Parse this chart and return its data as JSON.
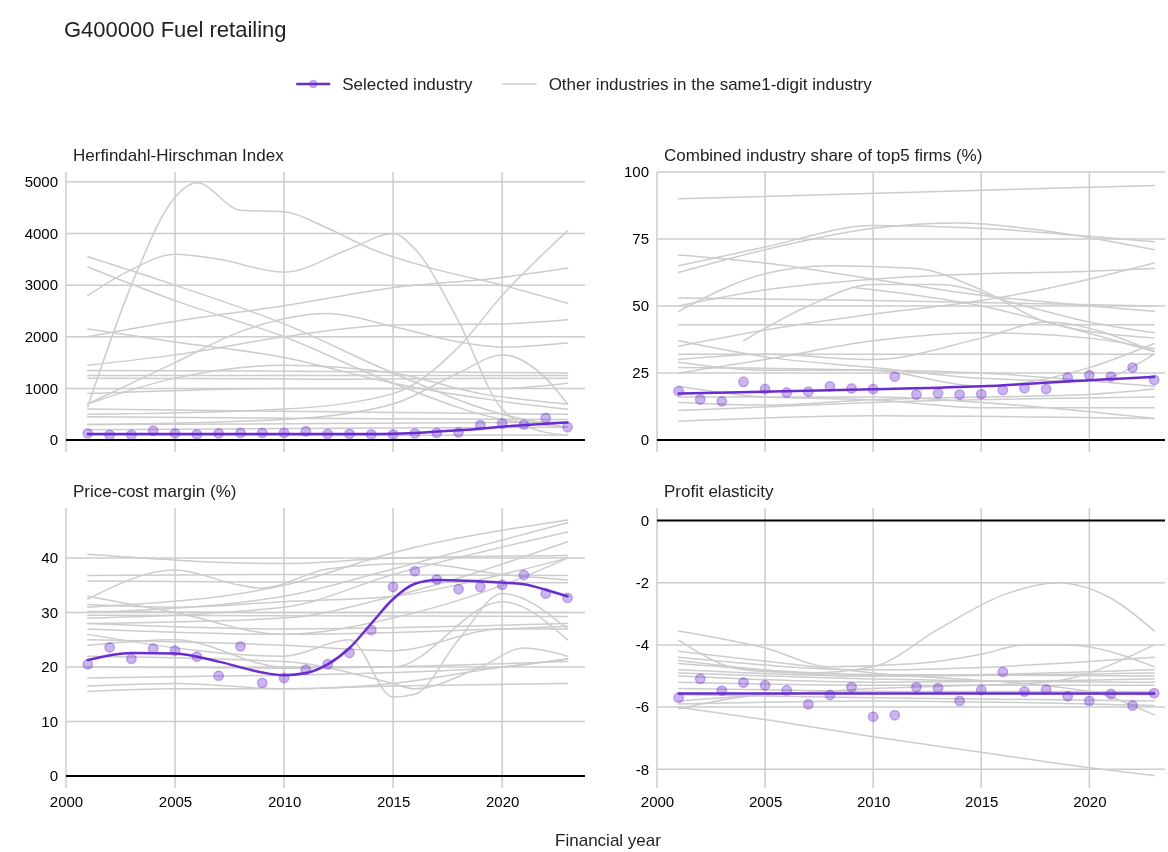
{
  "chart_data": [
    {
      "type": "line",
      "title": "Herfindahl-Hirschman Index",
      "annotations": [
        "G400000 Fuel retailing"
      ],
      "legend": "top",
      "grid": true,
      "tick_labels": "y",
      "xlim": [
        2000,
        2023.8
      ],
      "xticks": [
        2000,
        2005,
        2010,
        2015,
        2020
      ],
      "ylim": [
        -230,
        5190
      ],
      "yticks": [
        0,
        1000,
        2000,
        3000,
        4000,
        5000
      ],
      "ref_lines": [
        {
          "axis": "y",
          "value": 0,
          "color": "#000000"
        }
      ],
      "x": [
        2001,
        2002,
        2003,
        2004,
        2005,
        2006,
        2007,
        2008,
        2009,
        2010,
        2011,
        2012,
        2013,
        2014,
        2015,
        2016,
        2017,
        2018,
        2019,
        2020,
        2021,
        2022,
        2023
      ],
      "series": [
        {
          "type": "line",
          "name": "Other industries in the same1-digit industry",
          "color": "#cccccc",
          "x": [
            2001,
            2003,
            2005,
            2006,
            2008,
            2010,
            2012,
            2014,
            2017,
            2020,
            2023
          ],
          "values": [
            650,
            3000,
            4700,
            4980,
            4450,
            4420,
            4100,
            3700,
            3300,
            3000,
            2650
          ]
        },
        {
          "type": "line",
          "color": "#cccccc",
          "x": [
            2001,
            2003,
            2005,
            2007,
            2010,
            2013,
            2015,
            2016,
            2018,
            2020,
            2022,
            2023
          ],
          "values": [
            2800,
            3300,
            3600,
            3500,
            3250,
            3700,
            4000,
            3700,
            2300,
            600,
            150,
            100
          ]
        },
        {
          "type": "line",
          "color": "#cccccc",
          "x": [
            2001,
            2005,
            2010,
            2015,
            2020,
            2023
          ],
          "values": [
            3550,
            3000,
            2250,
            1300,
            500,
            250
          ]
        },
        {
          "type": "line",
          "color": "#cccccc",
          "x": [
            2001,
            2005,
            2010,
            2015,
            2020,
            2023
          ],
          "values": [
            3350,
            2700,
            2000,
            1100,
            400,
            250
          ]
        },
        {
          "type": "line",
          "color": "#cccccc",
          "x": [
            2001,
            2010,
            2015,
            2018,
            2020,
            2023
          ],
          "values": [
            500,
            600,
            900,
            1800,
            2800,
            4050
          ]
        },
        {
          "type": "line",
          "color": "#cccccc",
          "x": [
            2001,
            2005,
            2010,
            2015,
            2020,
            2023
          ],
          "values": [
            2000,
            2300,
            2600,
            2950,
            3150,
            3330
          ]
        },
        {
          "type": "line",
          "color": "#cccccc",
          "x": [
            2001,
            2005,
            2010,
            2015,
            2020,
            2023
          ],
          "values": [
            2150,
            1900,
            1600,
            1100,
            750,
            600
          ]
        },
        {
          "type": "line",
          "color": "#cccccc",
          "x": [
            2001,
            2005,
            2008,
            2012,
            2015,
            2018,
            2020,
            2023
          ],
          "values": [
            700,
            1500,
            2100,
            2450,
            2200,
            1900,
            1800,
            1880
          ]
        },
        {
          "type": "line",
          "color": "#cccccc",
          "x": [
            2001,
            2005,
            2010,
            2015,
            2020,
            2023
          ],
          "values": [
            1450,
            1650,
            2000,
            2230,
            2250,
            2330
          ]
        },
        {
          "type": "line",
          "color": "#cccccc",
          "x": [
            2001,
            2005,
            2010,
            2015,
            2019,
            2023
          ],
          "values": [
            700,
            1200,
            1450,
            1300,
            900,
            700
          ]
        },
        {
          "type": "line",
          "color": "#cccccc",
          "x": [
            2001,
            2012,
            2023
          ],
          "values": [
            1350,
            1330,
            1300
          ]
        },
        {
          "type": "line",
          "color": "#cccccc",
          "x": [
            2001,
            2012,
            2023
          ],
          "values": [
            1250,
            1250,
            1250
          ]
        },
        {
          "type": "line",
          "color": "#cccccc",
          "x": [
            2001,
            2012,
            2023
          ],
          "values": [
            1200,
            1180,
            1200
          ]
        },
        {
          "type": "line",
          "color": "#cccccc",
          "x": [
            2001,
            2010,
            2020,
            2023
          ],
          "values": [
            900,
            1000,
            1000,
            1100
          ]
        },
        {
          "type": "line",
          "color": "#cccccc",
          "x": [
            2001,
            2010,
            2015,
            2018,
            2020,
            2022,
            2023
          ],
          "values": [
            300,
            400,
            700,
            1300,
            1650,
            1200,
            700
          ]
        },
        {
          "type": "line",
          "color": "#cccccc",
          "x": [
            2001,
            2012,
            2023
          ],
          "values": [
            600,
            550,
            500
          ]
        },
        {
          "type": "line",
          "color": "#cccccc",
          "x": [
            2001,
            2012,
            2023
          ],
          "values": [
            450,
            420,
            400
          ]
        },
        {
          "type": "line",
          "color": "#cccccc",
          "x": [
            2001,
            2012,
            2023
          ],
          "values": [
            300,
            320,
            350
          ]
        },
        {
          "type": "line",
          "color": "#cccccc",
          "x": [
            2001,
            2012,
            2023
          ],
          "values": [
            200,
            230,
            250
          ]
        },
        {
          "type": "line",
          "color": "#cccccc",
          "x": [
            2001,
            2012,
            2023
          ],
          "values": [
            100,
            90,
            100
          ]
        },
        {
          "type": "scatter",
          "color": "#6a2bd0",
          "marker": "circle",
          "values": [
            130,
            100,
            100,
            180,
            130,
            110,
            130,
            140,
            140,
            140,
            170,
            120,
            120,
            110,
            110,
            130,
            140,
            150,
            290,
            320,
            300,
            430,
            250
          ]
        },
        {
          "type": "line",
          "name": "Selected industry",
          "color": "#6a2bd0",
          "x": [
            2001,
            2005,
            2010,
            2014,
            2016,
            2018,
            2020,
            2023
          ],
          "values": [
            120,
            120,
            120,
            120,
            140,
            190,
            260,
            340
          ]
        }
      ]
    },
    {
      "type": "line",
      "title": "Combined industry share of top5 firms (%)",
      "grid": true,
      "tick_labels": "y",
      "xlim": [
        2000,
        2023.5
      ],
      "xticks": [
        2000,
        2005,
        2010,
        2015,
        2020
      ],
      "ylim": [
        -4.5,
        100
      ],
      "yticks": [
        0,
        25,
        50,
        75,
        100
      ],
      "ref_lines": [
        {
          "axis": "y",
          "value": 0,
          "color": "#000000"
        }
      ],
      "x": [
        2001,
        2002,
        2003,
        2004,
        2005,
        2006,
        2007,
        2008,
        2009,
        2010,
        2011,
        2012,
        2013,
        2014,
        2015,
        2016,
        2017,
        2018,
        2019,
        2020,
        2021,
        2022,
        2023
      ],
      "series": [
        {
          "type": "line",
          "color": "#cccccc",
          "x": [
            2001,
            2023
          ],
          "values": [
            90,
            95
          ]
        },
        {
          "type": "line",
          "color": "#cccccc",
          "x": [
            2001,
            2005,
            2010,
            2015,
            2020,
            2023
          ],
          "values": [
            65,
            72,
            80,
            79,
            76,
            74
          ]
        },
        {
          "type": "line",
          "color": "#cccccc",
          "x": [
            2001,
            2005,
            2010,
            2014,
            2018,
            2023
          ],
          "values": [
            62.5,
            71,
            79,
            81,
            78,
            71
          ]
        },
        {
          "type": "line",
          "color": "#cccccc",
          "x": [
            2001,
            2005,
            2010,
            2015,
            2020,
            2023
          ],
          "values": [
            69,
            66,
            60,
            54,
            50,
            48
          ]
        },
        {
          "type": "line",
          "color": "#cccccc",
          "x": [
            2001,
            2005,
            2008,
            2012,
            2015,
            2018,
            2023
          ],
          "values": [
            48,
            62,
            65,
            64,
            56,
            44,
            38
          ]
        },
        {
          "type": "line",
          "color": "#cccccc",
          "x": [
            2001,
            2010,
            2023
          ],
          "values": [
            53,
            52,
            50
          ]
        },
        {
          "type": "line",
          "color": "#cccccc",
          "x": [
            2001,
            2005,
            2010,
            2015,
            2020,
            2023
          ],
          "values": [
            50,
            56,
            60,
            62,
            63,
            64
          ]
        },
        {
          "type": "line",
          "color": "#cccccc",
          "x": [
            2001,
            2010,
            2023
          ],
          "values": [
            43,
            43,
            43
          ]
        },
        {
          "type": "line",
          "color": "#cccccc",
          "x": [
            2004,
            2007,
            2010,
            2013,
            2017,
            2020,
            2023
          ],
          "values": [
            37,
            50,
            58,
            58,
            50,
            44,
            40
          ]
        },
        {
          "type": "line",
          "color": "#cccccc",
          "x": [
            2009,
            2012,
            2015,
            2019,
            2023
          ],
          "values": [
            57,
            54,
            50,
            42,
            33
          ]
        },
        {
          "type": "line",
          "color": "#cccccc",
          "x": [
            2001,
            2005,
            2010,
            2015,
            2020,
            2023
          ],
          "values": [
            35,
            41,
            47,
            52,
            60,
            66
          ]
        },
        {
          "type": "line",
          "color": "#cccccc",
          "x": [
            2001,
            2005,
            2010,
            2015,
            2020,
            2023
          ],
          "values": [
            37,
            31,
            27,
            23,
            22,
            32
          ]
        },
        {
          "type": "line",
          "color": "#cccccc",
          "x": [
            2001,
            2005,
            2010,
            2015,
            2018,
            2023
          ],
          "values": [
            30,
            32,
            30,
            38,
            44,
            33
          ]
        },
        {
          "type": "line",
          "color": "#cccccc",
          "x": [
            2001,
            2005,
            2010,
            2015,
            2020,
            2023
          ],
          "values": [
            25,
            30,
            37,
            40,
            38,
            34
          ]
        },
        {
          "type": "line",
          "color": "#cccccc",
          "x": [
            2001,
            2005,
            2010,
            2015,
            2020,
            2023
          ],
          "values": [
            29,
            26,
            26,
            25,
            22,
            20
          ]
        },
        {
          "type": "line",
          "color": "#cccccc",
          "x": [
            2001,
            2010,
            2023
          ],
          "values": [
            32,
            32,
            32
          ]
        },
        {
          "type": "line",
          "color": "#cccccc",
          "x": [
            2001,
            2005,
            2010,
            2015,
            2020,
            2023
          ],
          "values": [
            20,
            16,
            15,
            12,
            12,
            12
          ]
        },
        {
          "type": "line",
          "color": "#cccccc",
          "x": [
            2001,
            2005,
            2010,
            2015,
            2020,
            2023
          ],
          "values": [
            14,
            13,
            15,
            16,
            17,
            19
          ]
        },
        {
          "type": "line",
          "color": "#cccccc",
          "x": [
            2001,
            2010,
            2023
          ],
          "values": [
            11,
            14,
            16
          ]
        },
        {
          "type": "line",
          "color": "#cccccc",
          "x": [
            2001,
            2010,
            2023
          ],
          "values": [
            7,
            9,
            8
          ]
        },
        {
          "type": "line",
          "color": "#cccccc",
          "x": [
            2001,
            2010,
            2015,
            2023
          ],
          "values": [
            16,
            16,
            14,
            8
          ]
        },
        {
          "type": "line",
          "color": "#cccccc",
          "x": [
            2001,
            2010,
            2015,
            2020,
            2023
          ],
          "values": [
            27,
            26,
            20,
            27,
            36
          ]
        },
        {
          "type": "scatter",
          "color": "#6a2bd0",
          "marker": "circle",
          "values": [
            18.2,
            15.1,
            14.4,
            21.7,
            19.0,
            17.7,
            18.0,
            20.0,
            19.2,
            19.0,
            23.6,
            16.9,
            17.4,
            16.9,
            17.1,
            18.6,
            19.3,
            19.0,
            23.3,
            24.2,
            23.6,
            27.0,
            22.4
          ]
        },
        {
          "type": "line",
          "color": "#6a2bd0",
          "x": [
            2001,
            2010,
            2015,
            2020,
            2023
          ],
          "values": [
            17.3,
            18.9,
            20.0,
            22.3,
            23.5
          ]
        }
      ]
    },
    {
      "type": "line",
      "title": "Price-cost margin (%)",
      "xlabel": "Financial year",
      "grid": true,
      "xlim": [
        2000,
        2023.8
      ],
      "xticks": [
        2000,
        2005,
        2010,
        2015,
        2020
      ],
      "ylim": [
        0,
        49.2
      ],
      "yticks": [
        0,
        10,
        20,
        30,
        40
      ],
      "x": [
        2001,
        2002,
        2003,
        2004,
        2005,
        2006,
        2007,
        2008,
        2009,
        2010,
        2011,
        2012,
        2013,
        2014,
        2015,
        2016,
        2017,
        2018,
        2019,
        2020,
        2021,
        2022,
        2023
      ],
      "series": [
        {
          "type": "line",
          "color": "#cccccc",
          "x": [
            2001,
            2010,
            2015,
            2023
          ],
          "values": [
            40.7,
            39,
            40,
            40.5
          ]
        },
        {
          "type": "line",
          "color": "#cccccc",
          "x": [
            2001,
            2010,
            2023
          ],
          "values": [
            36.8,
            37,
            36.8
          ]
        },
        {
          "type": "line",
          "color": "#cccccc",
          "x": [
            2001,
            2010,
            2023
          ],
          "values": [
            35.8,
            35.6,
            35.5
          ]
        },
        {
          "type": "line",
          "color": "#cccccc",
          "x": [
            2001,
            2005,
            2008,
            2009,
            2012,
            2016,
            2020,
            2023
          ],
          "values": [
            32.5,
            37.8,
            35,
            34.5,
            38,
            39,
            37,
            36
          ]
        },
        {
          "type": "line",
          "color": "#cccccc",
          "x": [
            2001,
            2010,
            2015,
            2023
          ],
          "values": [
            31,
            35,
            41,
            47
          ]
        },
        {
          "type": "line",
          "color": "#cccccc",
          "x": [
            2001,
            2010,
            2015,
            2023
          ],
          "values": [
            30,
            33,
            38,
            46.5
          ]
        },
        {
          "type": "line",
          "color": "#cccccc",
          "x": [
            2001,
            2010,
            2015,
            2023
          ],
          "values": [
            29,
            31,
            37,
            44.8
          ]
        },
        {
          "type": "line",
          "color": "#cccccc",
          "x": [
            2001,
            2010,
            2015,
            2023
          ],
          "values": [
            28,
            29,
            33,
            43
          ]
        },
        {
          "type": "line",
          "color": "#cccccc",
          "x": [
            2001,
            2010,
            2023
          ],
          "values": [
            30.2,
            30,
            30
          ]
        },
        {
          "type": "line",
          "color": "#cccccc",
          "x": [
            2001,
            2010,
            2023
          ],
          "values": [
            29.5,
            29.4,
            29.3
          ]
        },
        {
          "type": "line",
          "color": "#cccccc",
          "x": [
            2001,
            2010,
            2023
          ],
          "values": [
            28,
            27,
            28
          ]
        },
        {
          "type": "line",
          "color": "#cccccc",
          "x": [
            2001,
            2010,
            2023
          ],
          "values": [
            27,
            26,
            27.5
          ]
        },
        {
          "type": "line",
          "color": "#cccccc",
          "x": [
            2001,
            2010,
            2015,
            2020,
            2023
          ],
          "values": [
            25,
            24,
            23,
            27,
            27
          ]
        },
        {
          "type": "line",
          "color": "#cccccc",
          "x": [
            2001,
            2005,
            2010,
            2015,
            2020,
            2023
          ],
          "values": [
            24,
            25,
            20,
            20,
            32,
            25
          ]
        },
        {
          "type": "line",
          "color": "#cccccc",
          "x": [
            2001,
            2010,
            2015,
            2016,
            2019,
            2021,
            2023
          ],
          "values": [
            22,
            21,
            17,
            16,
            20,
            23.5,
            22
          ]
        },
        {
          "type": "line",
          "color": "#cccccc",
          "x": [
            2001,
            2010,
            2023
          ],
          "values": [
            20,
            19.8,
            21
          ]
        },
        {
          "type": "line",
          "color": "#cccccc",
          "x": [
            2001,
            2010,
            2015,
            2020,
            2023
          ],
          "values": [
            18,
            18.5,
            19,
            20,
            21.5
          ]
        },
        {
          "type": "line",
          "color": "#cccccc",
          "x": [
            2001,
            2005,
            2010,
            2015,
            2020,
            2023
          ],
          "values": [
            16.5,
            17,
            16,
            17,
            20,
            21.5
          ]
        },
        {
          "type": "line",
          "color": "#cccccc",
          "x": [
            2001,
            2005,
            2010,
            2015,
            2023
          ],
          "values": [
            15.5,
            16,
            16,
            16.5,
            17
          ]
        },
        {
          "type": "line",
          "color": "#cccccc",
          "x": [
            2001,
            2010,
            2013,
            2015,
            2016,
            2018,
            2020,
            2023
          ],
          "values": [
            26,
            22,
            25,
            14.5,
            15,
            25,
            33.5,
            27
          ]
        },
        {
          "type": "line",
          "color": "#cccccc",
          "x": [
            2001,
            2005,
            2010,
            2015,
            2020,
            2023
          ],
          "values": [
            33,
            30,
            26,
            29,
            35,
            40
          ]
        },
        {
          "type": "line",
          "color": "#cccccc",
          "x": [
            2001,
            2005,
            2010,
            2015,
            2020,
            2023
          ],
          "values": [
            31.5,
            31,
            32,
            33,
            37,
            40
          ]
        },
        {
          "type": "scatter",
          "color": "#6a2bd0",
          "marker": "circle",
          "values": [
            20.5,
            23.6,
            21.5,
            23.4,
            23.0,
            21.9,
            18.4,
            23.8,
            17.1,
            18.0,
            19.5,
            20.5,
            22.6,
            26.8,
            34.7,
            37.6,
            36.1,
            34.3,
            34.7,
            35.1,
            36.9,
            33.5,
            32.7
          ]
        },
        {
          "type": "line",
          "color": "#6a2bd0",
          "x": [
            2001,
            2003,
            2005,
            2007,
            2009,
            2010,
            2011,
            2012,
            2013,
            2014,
            2015,
            2016,
            2017,
            2020,
            2021,
            2022,
            2023
          ],
          "values": [
            21.3,
            22.6,
            22.5,
            21,
            19,
            18.5,
            18.9,
            20.5,
            23.5,
            28,
            32.5,
            35.3,
            36,
            35.5,
            35.2,
            34.2,
            33
          ]
        }
      ]
    },
    {
      "type": "line",
      "title": "Profit elasticity",
      "grid": true,
      "xlim": [
        2000,
        2023.5
      ],
      "xticks": [
        2000,
        2005,
        2010,
        2015,
        2020
      ],
      "ylim": [
        -8.6,
        0.4
      ],
      "yticks": [
        -8,
        -6,
        -4,
        -2,
        0
      ],
      "ref_lines": [
        {
          "axis": "y",
          "value": 0,
          "color": "#000000"
        }
      ],
      "x": [
        2001,
        2002,
        2003,
        2004,
        2005,
        2006,
        2007,
        2008,
        2009,
        2010,
        2011,
        2012,
        2013,
        2014,
        2015,
        2016,
        2017,
        2018,
        2019,
        2020,
        2021,
        2022,
        2023
      ],
      "series": [
        {
          "type": "line",
          "color": "#cccccc",
          "x": [
            2001,
            2005,
            2008,
            2012,
            2015,
            2017,
            2019,
            2023
          ],
          "values": [
            -3.55,
            -4.1,
            -4.7,
            -4.6,
            -4.3,
            -4.0,
            -4.0,
            -4.7
          ]
        },
        {
          "type": "line",
          "color": "#cccccc",
          "x": [
            2001,
            2004,
            2007,
            2010,
            2013,
            2016,
            2018.5,
            2021,
            2023
          ],
          "values": [
            -3.85,
            -4.8,
            -4.9,
            -4.7,
            -3.5,
            -2.4,
            -2.0,
            -2.5,
            -3.55
          ]
        },
        {
          "type": "line",
          "color": "#cccccc",
          "x": [
            2001,
            2005,
            2010,
            2015,
            2020,
            2023
          ],
          "values": [
            -6.0,
            -6.4,
            -6.95,
            -7.45,
            -7.95,
            -8.2
          ]
        },
        {
          "type": "line",
          "color": "#cccccc",
          "x": [
            2001,
            2005,
            2010,
            2020,
            2023
          ],
          "values": [
            -6.05,
            -5.6,
            -5.5,
            -5.5,
            -5.5
          ]
        },
        {
          "type": "line",
          "color": "#cccccc",
          "x": [
            2001,
            2010,
            2020,
            2023
          ],
          "values": [
            -4.2,
            -4.9,
            -5.5,
            -6.25
          ]
        },
        {
          "type": "line",
          "color": "#cccccc",
          "x": [
            2001,
            2010,
            2023
          ],
          "values": [
            -4.4,
            -4.8,
            -4.4
          ]
        },
        {
          "type": "line",
          "color": "#cccccc",
          "x": [
            2001,
            2010,
            2023
          ],
          "values": [
            -4.8,
            -5.0,
            -4.8
          ]
        },
        {
          "type": "line",
          "color": "#cccccc",
          "x": [
            2001,
            2010,
            2023
          ],
          "values": [
            -5.0,
            -5.2,
            -5.1
          ]
        },
        {
          "type": "line",
          "color": "#cccccc",
          "x": [
            2001,
            2010,
            2023
          ],
          "values": [
            -5.2,
            -5.3,
            -5.3
          ]
        },
        {
          "type": "line",
          "color": "#cccccc",
          "x": [
            2001,
            2010,
            2023
          ],
          "values": [
            -5.4,
            -5.5,
            -5.6
          ]
        },
        {
          "type": "line",
          "color": "#cccccc",
          "x": [
            2001,
            2010,
            2023
          ],
          "values": [
            -4.6,
            -4.95,
            -5.0
          ]
        },
        {
          "type": "line",
          "color": "#cccccc",
          "x": [
            2001,
            2010,
            2023
          ],
          "values": [
            -5.9,
            -5.8,
            -5.95
          ]
        },
        {
          "type": "line",
          "color": "#cccccc",
          "x": [
            2001,
            2010,
            2023
          ],
          "values": [
            -5.6,
            -5.7,
            -5.8
          ]
        },
        {
          "type": "line",
          "color": "#cccccc",
          "x": [
            2001,
            2010,
            2018,
            2023
          ],
          "values": [
            -5.8,
            -5.4,
            -5.2,
            -4.0
          ]
        },
        {
          "type": "line",
          "color": "#cccccc",
          "x": [
            2001,
            2010,
            2023
          ],
          "values": [
            -4.9,
            -5.1,
            -5.2
          ]
        },
        {
          "type": "line",
          "color": "#cccccc",
          "x": [
            2001,
            2010,
            2023
          ],
          "values": [
            -4.5,
            -5.0,
            -4.9
          ]
        },
        {
          "type": "scatter",
          "color": "#6a2bd0",
          "marker": "circle",
          "values": [
            -5.7,
            -5.09,
            -5.47,
            -5.21,
            -5.3,
            -5.46,
            -5.91,
            -5.61,
            -5.36,
            -6.31,
            -6.26,
            -5.36,
            -5.39,
            -5.8,
            -5.45,
            -4.87,
            -5.5,
            -5.43,
            -5.65,
            -5.8,
            -5.58,
            -5.95,
            -5.55
          ]
        },
        {
          "type": "line",
          "color": "#6a2bd0",
          "x": [
            2001,
            2023
          ],
          "values": [
            -5.56,
            -5.56
          ]
        }
      ]
    }
  ]
}
